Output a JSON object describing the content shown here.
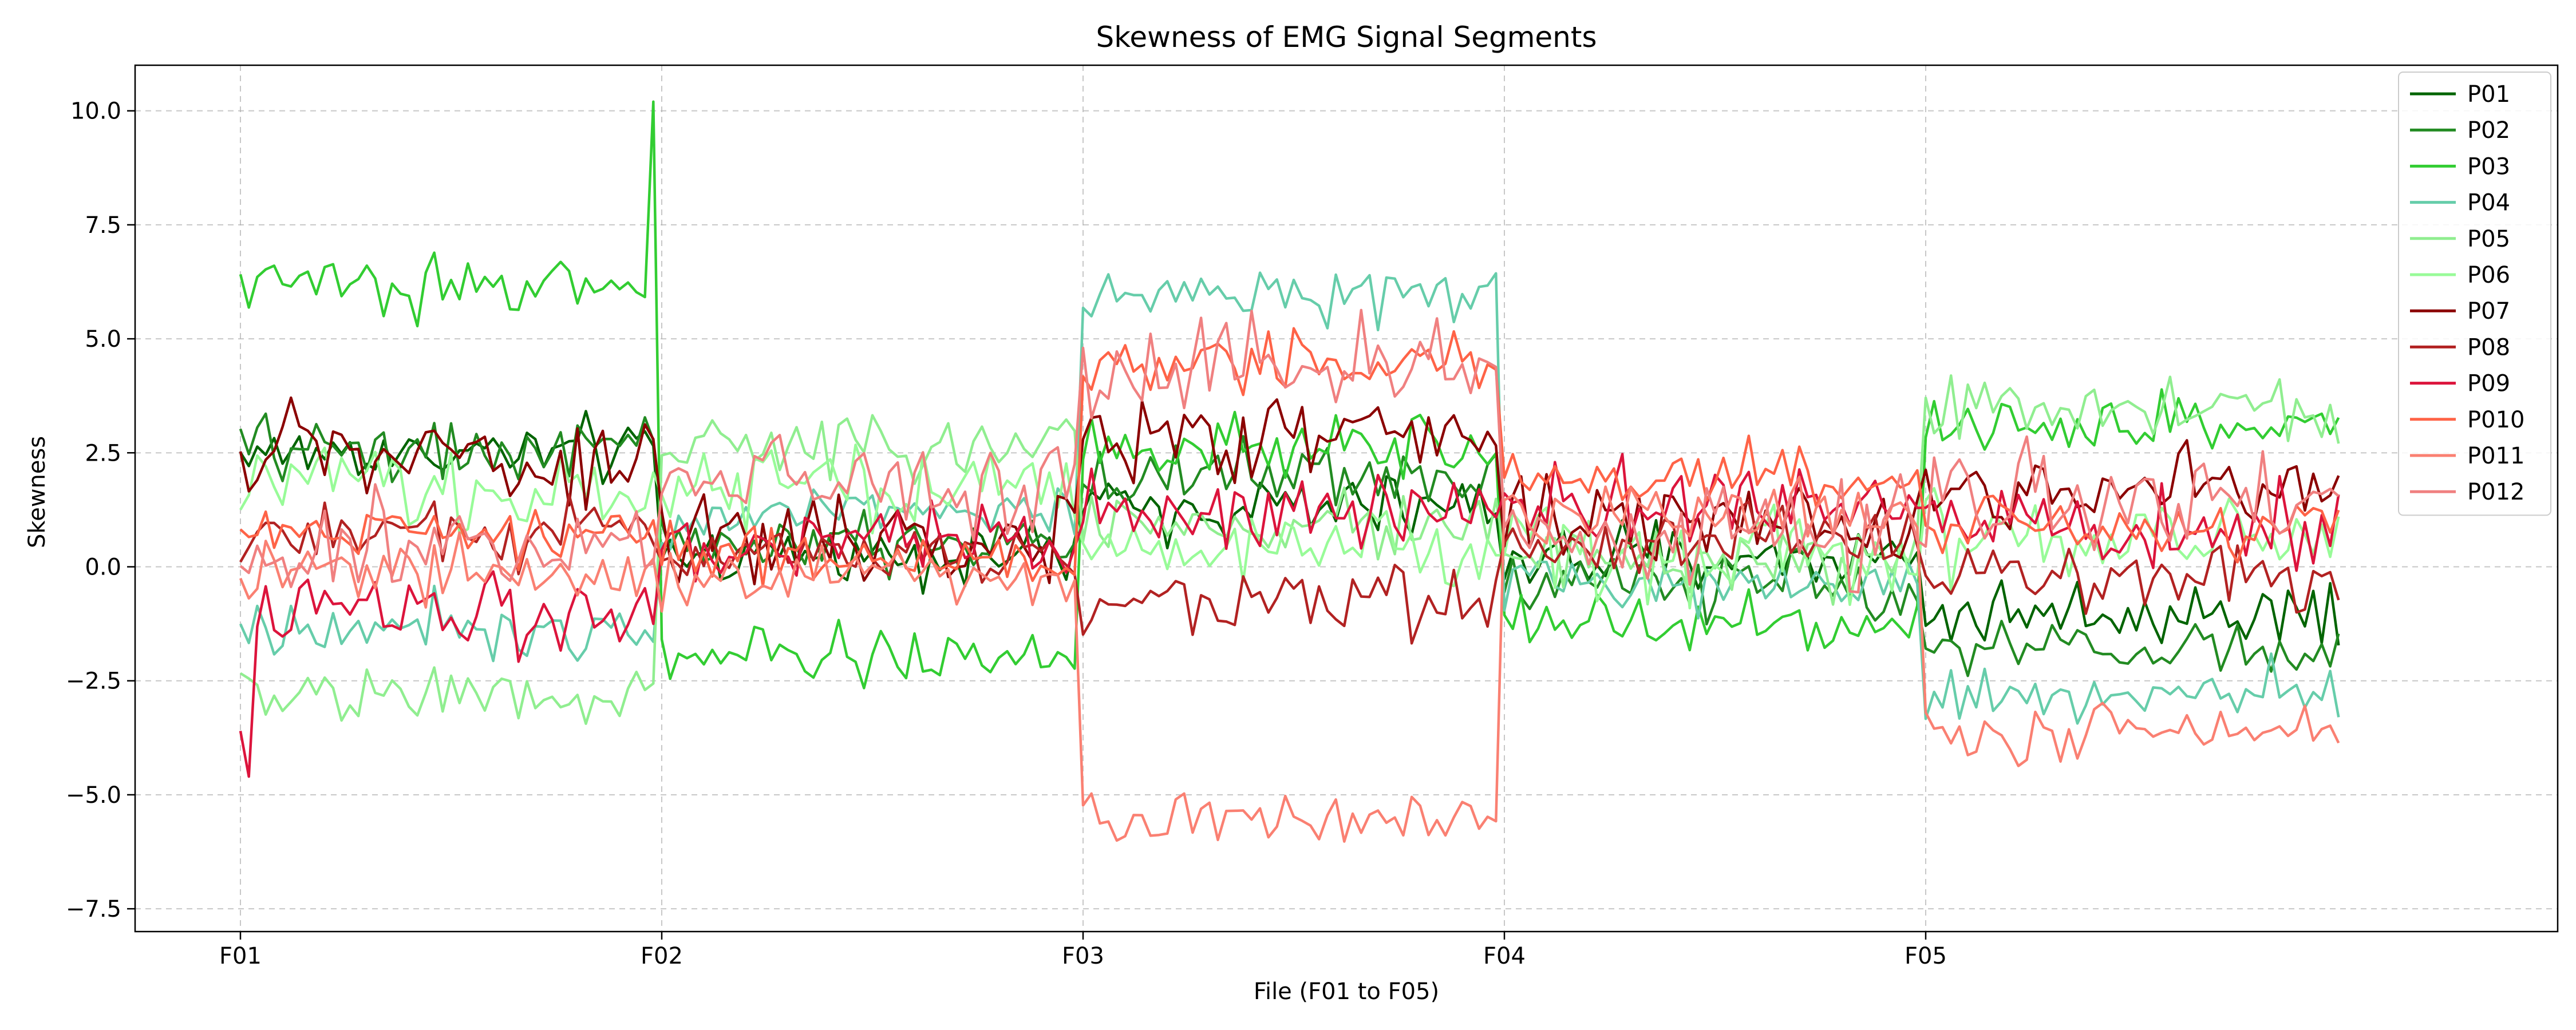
{
  "chart_data": {
    "type": "line",
    "title": "Skewness of EMG Signal Segments",
    "xlabel": "File (F01 to F05)",
    "ylabel": "Skewness",
    "x_ticks": [
      "F01",
      "F02",
      "F03",
      "F04",
      "F05"
    ],
    "xlim": [
      -0.25,
      5.5
    ],
    "ylim": [
      -8.0,
      11.0
    ],
    "y_ticks": [
      {
        "value": -7.5,
        "label": "−7.5"
      },
      {
        "value": -5.0,
        "label": "−5.0"
      },
      {
        "value": -2.5,
        "label": "−2.5"
      },
      {
        "value": 0.0,
        "label": "0.0"
      },
      {
        "value": 2.5,
        "label": "2.5"
      },
      {
        "value": 5.0,
        "label": "5.0"
      },
      {
        "value": 7.5,
        "label": "7.5"
      },
      {
        "value": 10.0,
        "label": "10.0"
      }
    ],
    "grid": true,
    "legend_position": "top-right",
    "series": [
      {
        "name": "P01",
        "color": "#006400",
        "means": [
          2.5,
          0.3,
          1.3,
          0.2,
          -1.0
        ],
        "noise": 0.5
      },
      {
        "name": "P02",
        "color": "#228B22",
        "means": [
          2.6,
          0.5,
          2.0,
          -0.4,
          -1.8
        ],
        "noise": 0.5
      },
      {
        "name": "P03",
        "color": "#32CD32",
        "means": [
          6.2,
          -2.0,
          2.6,
          -1.2,
          3.1
        ],
        "noise": 0.45,
        "spikes": [
          {
            "file": 0,
            "pos": 0.98,
            "value": 10.2
          }
        ]
      },
      {
        "name": "P04",
        "color": "#66CDAA",
        "means": [
          -1.3,
          1.2,
          6.0,
          -0.3,
          -2.8
        ],
        "noise": 0.45
      },
      {
        "name": "P05",
        "color": "#90EE90",
        "means": [
          -2.8,
          2.6,
          1.0,
          0.1,
          3.4
        ],
        "noise": 0.5
      },
      {
        "name": "P06",
        "color": "#98FB98",
        "means": [
          1.7,
          1.8,
          0.4,
          0.4,
          0.6
        ],
        "noise": 0.7
      },
      {
        "name": "P07",
        "color": "#8B0000",
        "means": [
          2.4,
          0.6,
          2.8,
          1.0,
          1.7
        ],
        "noise": 0.7
      },
      {
        "name": "P08",
        "color": "#B22222",
        "means": [
          0.8,
          0.3,
          -0.8,
          0.6,
          -0.2
        ],
        "noise": 0.5
      },
      {
        "name": "P09",
        "color": "#DC143C",
        "means": [
          -0.9,
          0.6,
          1.2,
          1.3,
          0.9
        ],
        "noise": 0.65,
        "start": [
          -3.6,
          -4.6
        ]
      },
      {
        "name": "P010",
        "color": "#FF6347",
        "means": [
          0.7,
          0.2,
          4.4,
          2.0,
          0.9
        ],
        "noise": 0.45
      },
      {
        "name": "P011",
        "color": "#FA8072",
        "means": [
          -0.2,
          -0.2,
          -5.5,
          1.2,
          -3.5
        ],
        "noise": 0.5
      },
      {
        "name": "P012",
        "color": "#F08080",
        "means": [
          0.4,
          1.9,
          4.5,
          0.9,
          1.4
        ],
        "noise": 0.8
      }
    ]
  }
}
